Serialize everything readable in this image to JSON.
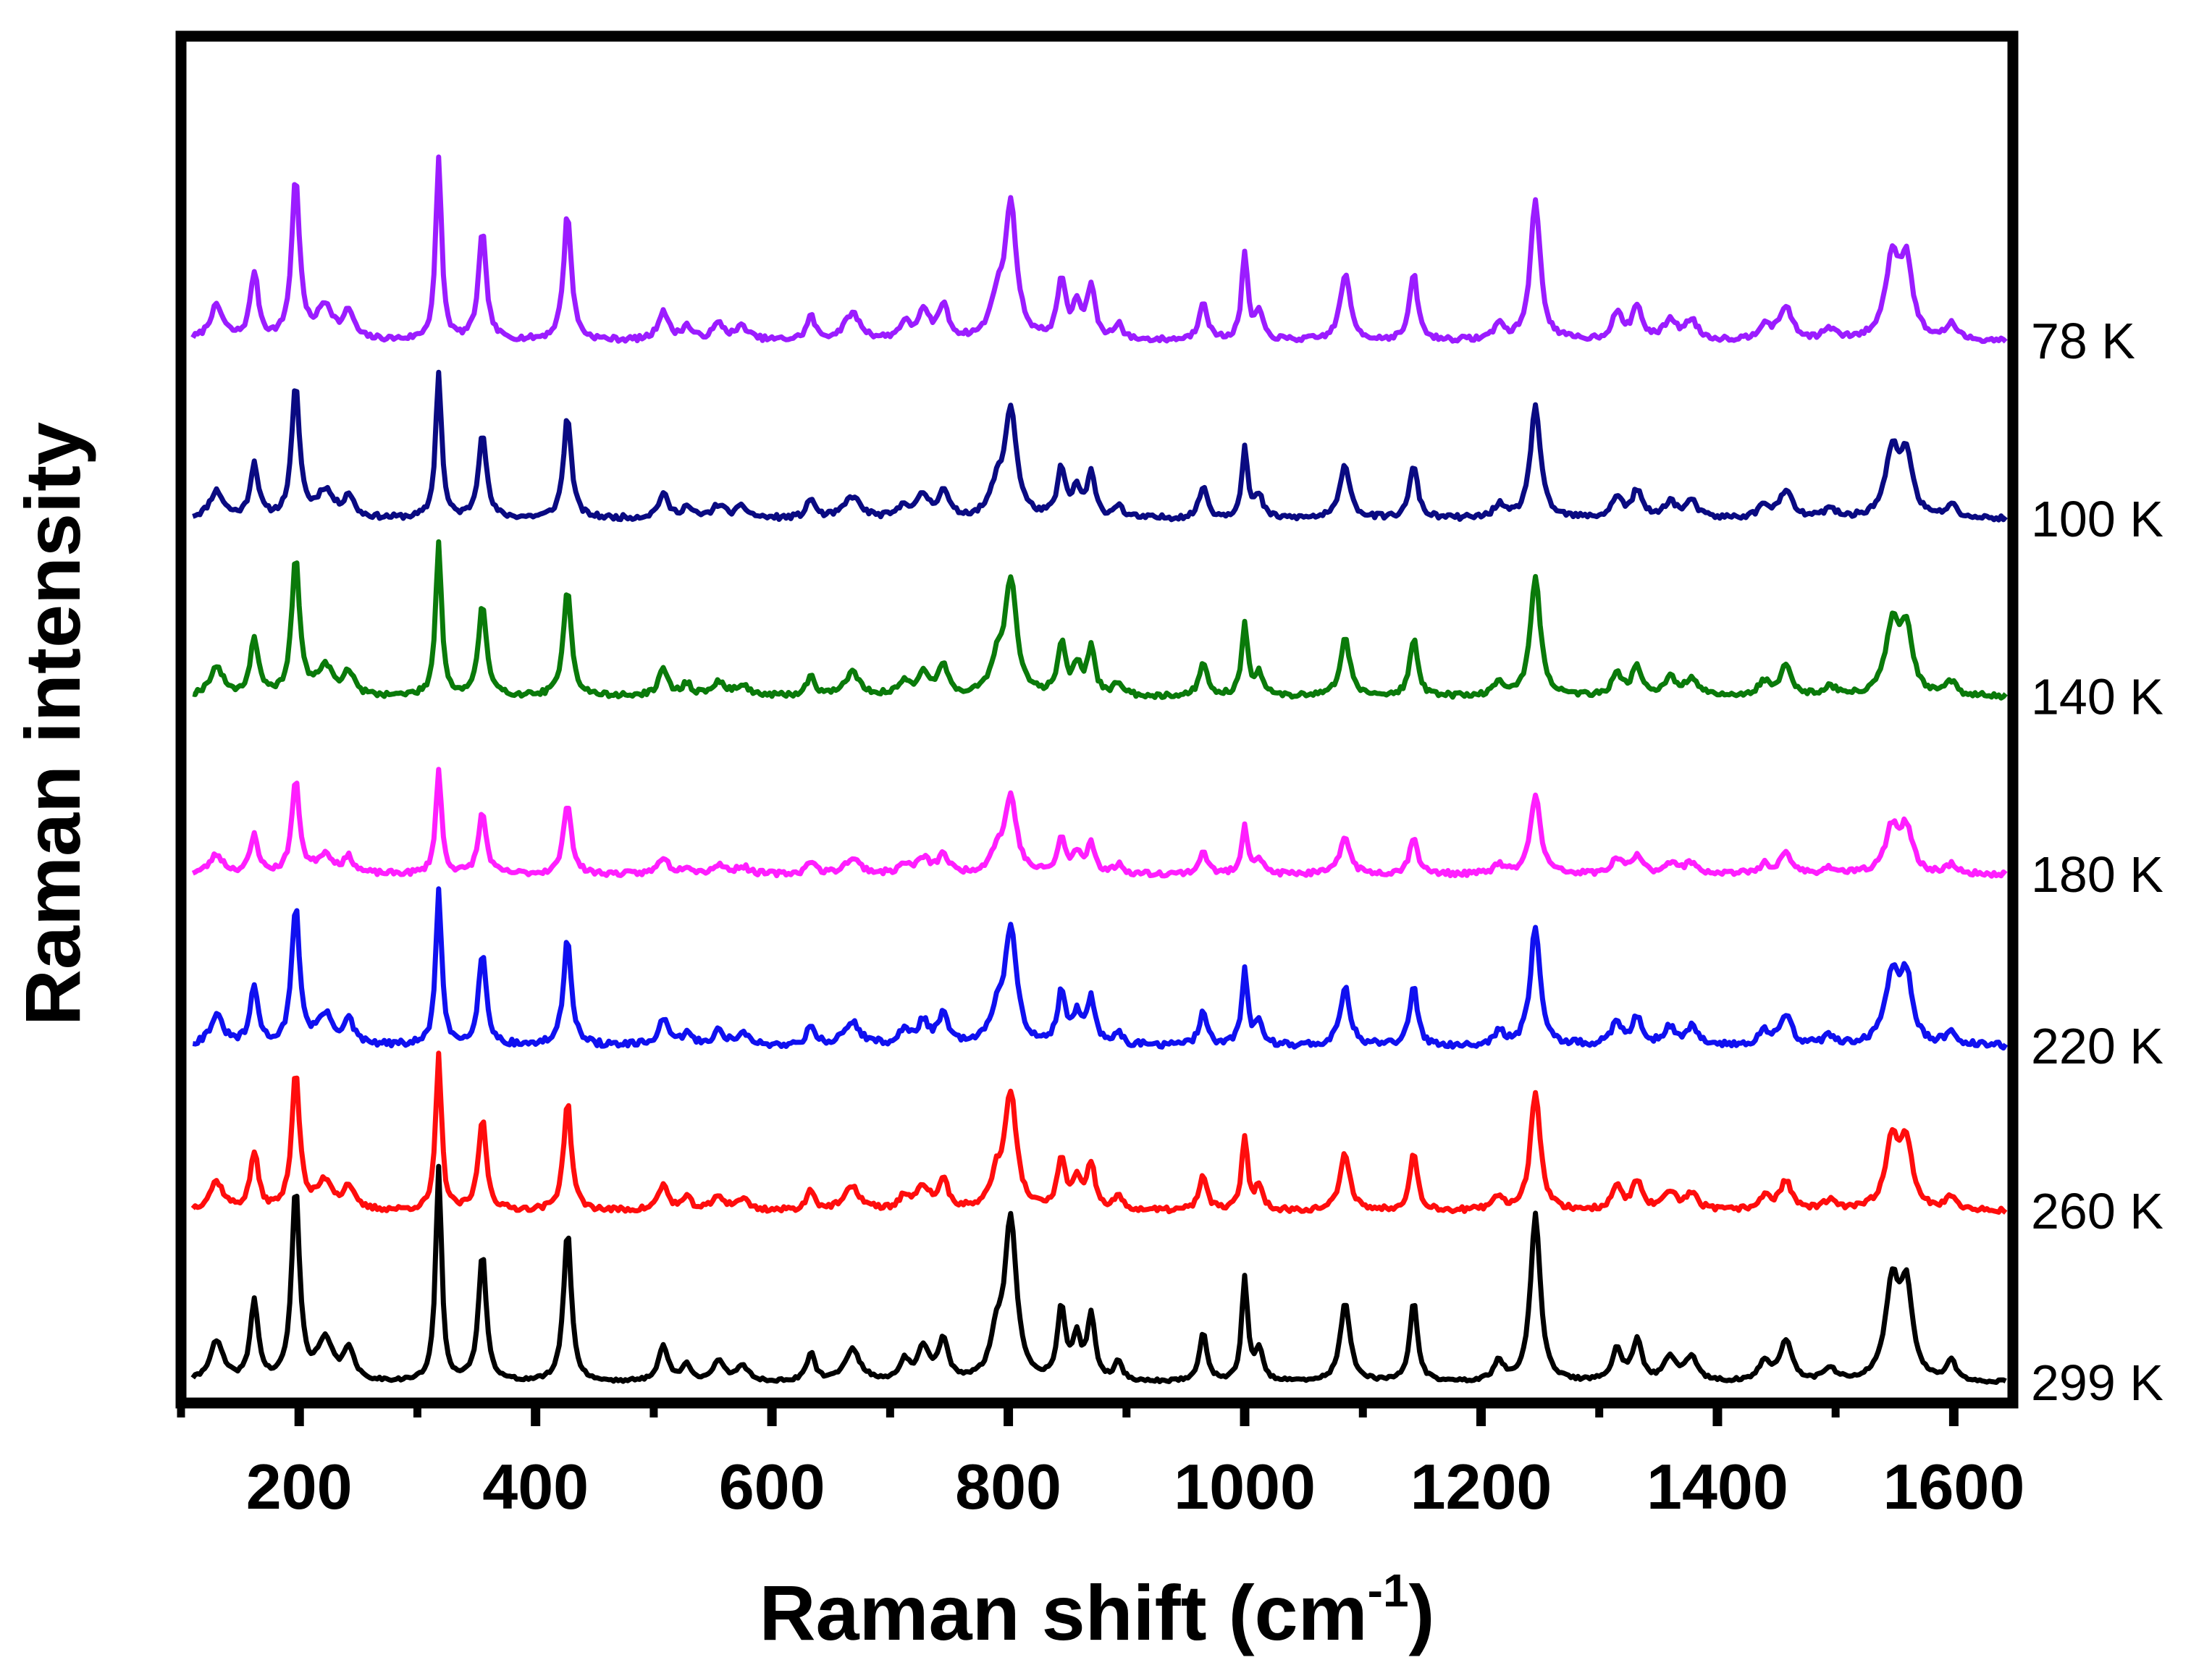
{
  "chart_data": {
    "type": "line",
    "title": "",
    "xlabel": "Raman shift (cm",
    "xlabel_sup": "-1",
    "xlabel_close": ")",
    "ylabel": "Raman intensity",
    "xlim": [
      100,
      1650
    ],
    "ylim": [
      0,
      10.6
    ],
    "xticks": [
      200,
      400,
      600,
      800,
      1000,
      1200,
      1400,
      1600
    ],
    "minor_xticks": [
      100,
      300,
      500,
      700,
      900,
      1100,
      1300,
      1500
    ],
    "yticks_visible": false,
    "grid": false,
    "legend": "none; temperatures labelled at right end of each trace",
    "peaks_cm1": [
      [
        130,
        0.25,
        7
      ],
      [
        162,
        0.5,
        4
      ],
      [
        197,
        1.2,
        4
      ],
      [
        222,
        0.25,
        8
      ],
      [
        242,
        0.2,
        5
      ],
      [
        318,
        1.35,
        3
      ],
      [
        355,
        0.8,
        4
      ],
      [
        427,
        0.95,
        4
      ],
      [
        508,
        0.22,
        5
      ],
      [
        528,
        0.1,
        5
      ],
      [
        555,
        0.12,
        6
      ],
      [
        575,
        0.1,
        6
      ],
      [
        633,
        0.18,
        4
      ],
      [
        668,
        0.2,
        8
      ],
      [
        712,
        0.12,
        5
      ],
      [
        728,
        0.2,
        6
      ],
      [
        745,
        0.25,
        5
      ],
      [
        790,
        0.25,
        6
      ],
      [
        802,
        1.0,
        6
      ],
      [
        845,
        0.45,
        4
      ],
      [
        858,
        0.25,
        4
      ],
      [
        870,
        0.4,
        4
      ],
      [
        893,
        0.12,
        4
      ],
      [
        965,
        0.3,
        4
      ],
      [
        1000,
        0.65,
        3
      ],
      [
        1012,
        0.2,
        4
      ],
      [
        1085,
        0.5,
        5
      ],
      [
        1143,
        0.5,
        4
      ],
      [
        1215,
        0.12,
        5
      ],
      [
        1246,
        1.05,
        5
      ],
      [
        1315,
        0.2,
        5
      ],
      [
        1332,
        0.25,
        5
      ],
      [
        1360,
        0.15,
        6
      ],
      [
        1378,
        0.15,
        6
      ],
      [
        1440,
        0.12,
        6
      ],
      [
        1458,
        0.25,
        6
      ],
      [
        1495,
        0.08,
        6
      ],
      [
        1548,
        0.6,
        7
      ],
      [
        1560,
        0.55,
        6
      ],
      [
        1598,
        0.12,
        5
      ]
    ],
    "series": [
      {
        "name": "78 K",
        "label": "78 K",
        "color": "#9b1cff",
        "offset": 8.2,
        "scale": 1.05,
        "noise": 0.02,
        "seed": 7
      },
      {
        "name": "100 K",
        "label": "100 K",
        "color": "#0a0a82",
        "offset": 6.8,
        "scale": 0.85,
        "noise": 0.02,
        "seed": 11
      },
      {
        "name": "140 K",
        "label": "140 K",
        "color": "#0a7a0a",
        "offset": 5.4,
        "scale": 0.9,
        "noise": 0.02,
        "seed": 19
      },
      {
        "name": "180 K",
        "label": "180 K",
        "color": "#ff1eff",
        "offset": 4.0,
        "scale": 0.6,
        "noise": 0.02,
        "seed": 23
      },
      {
        "name": "220 K",
        "label": "220 K",
        "color": "#1010f0",
        "offset": 2.65,
        "scale": 0.9,
        "noise": 0.025,
        "seed": 31
      },
      {
        "name": "260 K",
        "label": "260 K",
        "color": "#ff0d0d",
        "offset": 1.35,
        "scale": 0.9,
        "noise": 0.02,
        "seed": 37
      },
      {
        "name": "299 K",
        "label": "299 K",
        "color": "#000000",
        "offset": 0.0,
        "scale": 1.25,
        "noise": 0.012,
        "seed": 41
      }
    ]
  }
}
